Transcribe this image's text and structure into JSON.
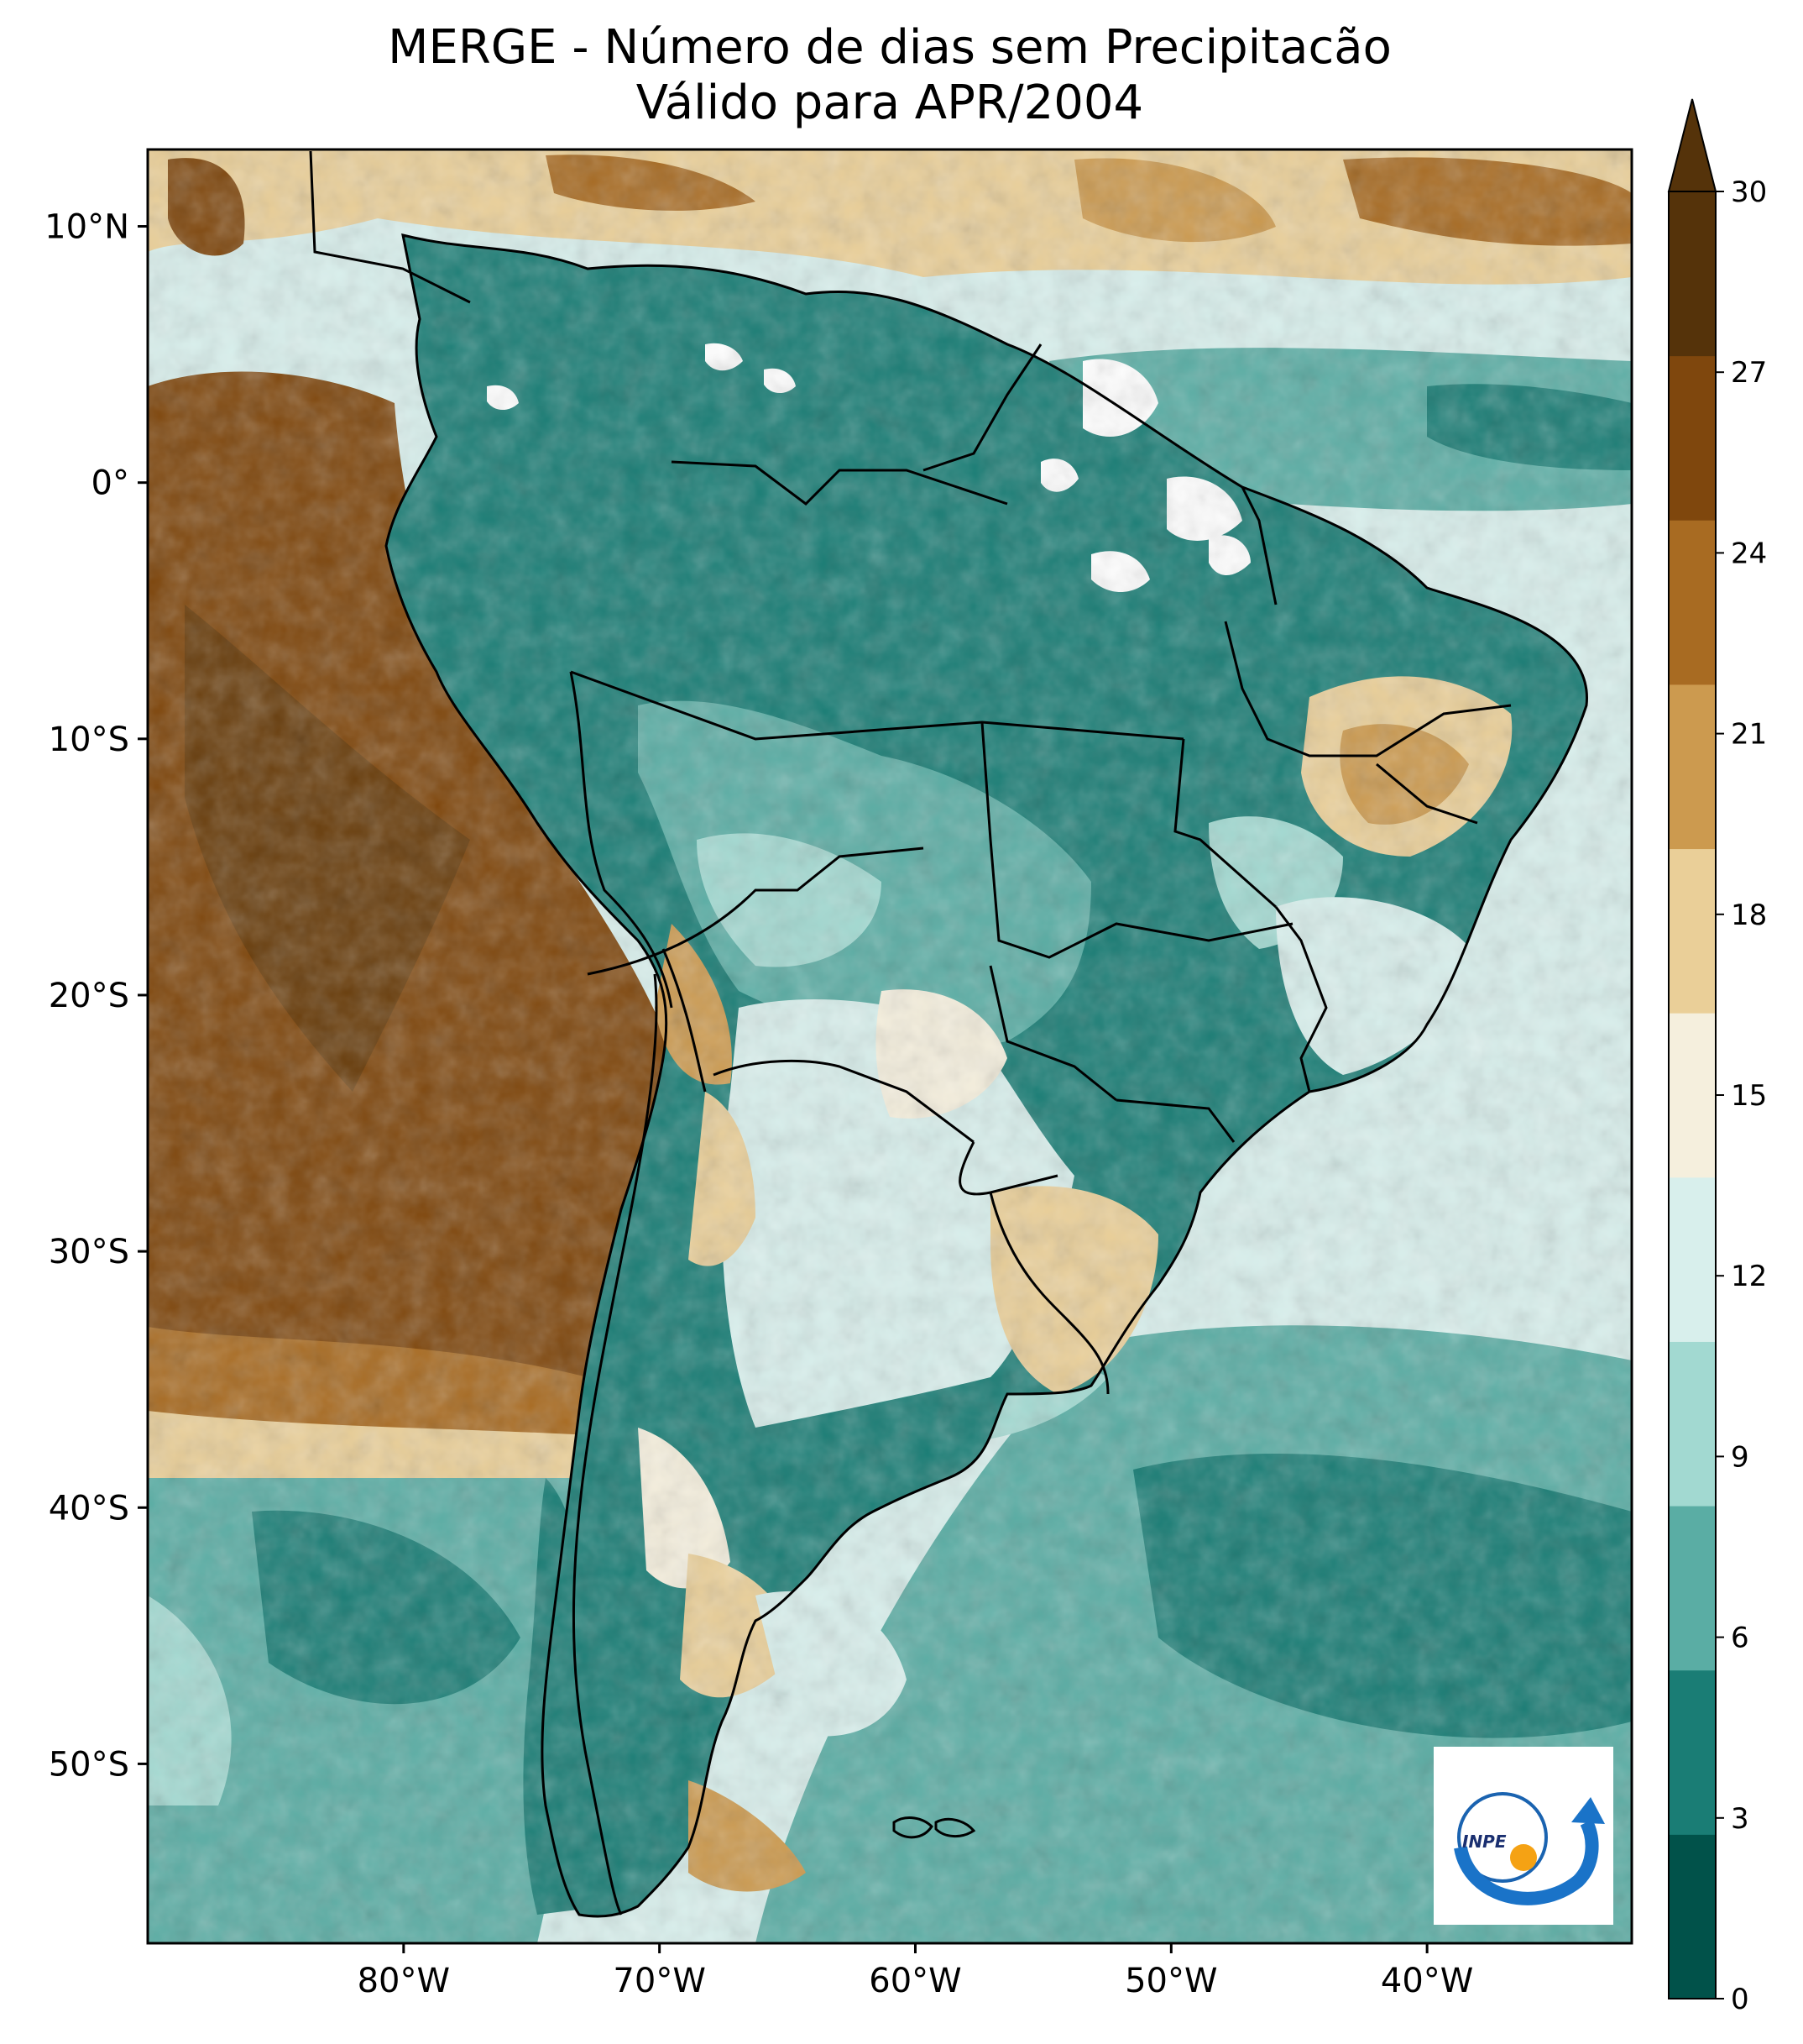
{
  "title": {
    "line1": "MERGE - Número de dias sem Precipitacão",
    "line2": "Válido para APR/2004"
  },
  "map": {
    "lon_range": [
      -90,
      -32
    ],
    "lat_range": [
      -57,
      13
    ],
    "lat_ticks": [
      {
        "value": 10,
        "label": "10°N"
      },
      {
        "value": 0,
        "label": "0°"
      },
      {
        "value": -10,
        "label": "10°S"
      },
      {
        "value": -20,
        "label": "20°S"
      },
      {
        "value": -30,
        "label": "30°S"
      },
      {
        "value": -40,
        "label": "40°S"
      },
      {
        "value": -50,
        "label": "50°S"
      }
    ],
    "lon_ticks": [
      {
        "value": -80,
        "label": "80°W"
      },
      {
        "value": -70,
        "label": "70°W"
      },
      {
        "value": -60,
        "label": "60°W"
      },
      {
        "value": -50,
        "label": "50°W"
      },
      {
        "value": -40,
        "label": "40°W"
      }
    ]
  },
  "colorbar": {
    "levels": [
      0,
      3,
      6,
      9,
      12,
      15,
      18,
      21,
      24,
      27,
      30
    ],
    "labels": [
      "0",
      "3",
      "6",
      "9",
      "12",
      "15",
      "18",
      "21",
      "24",
      "27",
      "30"
    ],
    "colors": [
      "#01524a",
      "#1a7d75",
      "#5aada4",
      "#a2d9d1",
      "#d8efec",
      "#f5efdd",
      "#eacf98",
      "#cc9a4f",
      "#a86b22",
      "#7f470d",
      "#55330a"
    ],
    "extend": "max"
  },
  "logo": {
    "text": "INPE"
  },
  "palette": {
    "ocean_dry": "#7f470d",
    "land_wet": "#1a7d75",
    "border": "#000000"
  }
}
